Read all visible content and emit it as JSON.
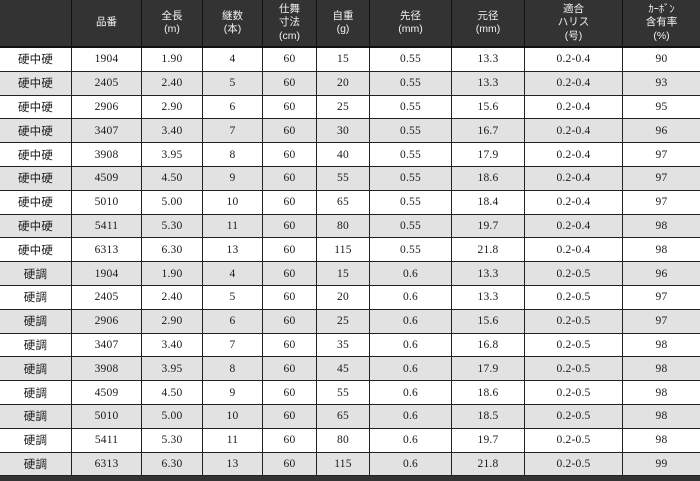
{
  "chart_data": {
    "type": "table",
    "title": "",
    "column_ids": [
      "stiffness",
      "model-number",
      "full-length",
      "sections",
      "closed-length",
      "weight",
      "tip-diameter",
      "butt-diameter",
      "line-rating",
      "carbon-content"
    ],
    "columns": [
      "",
      "品番",
      "全長\n(m)",
      "継数\n(本)",
      "仕舞\n寸法\n(cm)",
      "自重\n(g)",
      "先径\n(mm)",
      "元径\n(mm)",
      "適合\nハリス\n(号)",
      "ｶｰﾎﾞﾝ\n含有率\n(%)"
    ],
    "rows": [
      [
        "硬中硬",
        "1904",
        "1.90",
        "4",
        "60",
        "15",
        "0.55",
        "13.3",
        "0.2-0.4",
        "90"
      ],
      [
        "硬中硬",
        "2405",
        "2.40",
        "5",
        "60",
        "20",
        "0.55",
        "13.3",
        "0.2-0.4",
        "93"
      ],
      [
        "硬中硬",
        "2906",
        "2.90",
        "6",
        "60",
        "25",
        "0.55",
        "15.6",
        "0.2-0.4",
        "95"
      ],
      [
        "硬中硬",
        "3407",
        "3.40",
        "7",
        "60",
        "30",
        "0.55",
        "16.7",
        "0.2-0.4",
        "96"
      ],
      [
        "硬中硬",
        "3908",
        "3.95",
        "8",
        "60",
        "40",
        "0.55",
        "17.9",
        "0.2-0.4",
        "97"
      ],
      [
        "硬中硬",
        "4509",
        "4.50",
        "9",
        "60",
        "55",
        "0.55",
        "18.6",
        "0.2-0.4",
        "97"
      ],
      [
        "硬中硬",
        "5010",
        "5.00",
        "10",
        "60",
        "65",
        "0.55",
        "18.4",
        "0.2-0.4",
        "97"
      ],
      [
        "硬中硬",
        "5411",
        "5.30",
        "11",
        "60",
        "80",
        "0.55",
        "19.7",
        "0.2-0.4",
        "98"
      ],
      [
        "硬中硬",
        "6313",
        "6.30",
        "13",
        "60",
        "115",
        "0.55",
        "21.8",
        "0.2-0.4",
        "98"
      ],
      [
        "硬調",
        "1904",
        "1.90",
        "4",
        "60",
        "15",
        "0.6",
        "13.3",
        "0.2-0.5",
        "96"
      ],
      [
        "硬調",
        "2405",
        "2.40",
        "5",
        "60",
        "20",
        "0.6",
        "13.3",
        "0.2-0.5",
        "97"
      ],
      [
        "硬調",
        "2906",
        "2.90",
        "6",
        "60",
        "25",
        "0.6",
        "15.6",
        "0.2-0.5",
        "97"
      ],
      [
        "硬調",
        "3407",
        "3.40",
        "7",
        "60",
        "35",
        "0.6",
        "16.8",
        "0.2-0.5",
        "98"
      ],
      [
        "硬調",
        "3908",
        "3.95",
        "8",
        "60",
        "45",
        "0.6",
        "17.9",
        "0.2-0.5",
        "98"
      ],
      [
        "硬調",
        "4509",
        "4.50",
        "9",
        "60",
        "55",
        "0.6",
        "18.6",
        "0.2-0.5",
        "98"
      ],
      [
        "硬調",
        "5010",
        "5.00",
        "10",
        "60",
        "65",
        "0.6",
        "18.5",
        "0.2-0.5",
        "98"
      ],
      [
        "硬調",
        "5411",
        "5.30",
        "11",
        "60",
        "80",
        "0.6",
        "19.7",
        "0.2-0.5",
        "98"
      ],
      [
        "硬調",
        "6313",
        "6.30",
        "13",
        "60",
        "115",
        "0.6",
        "21.8",
        "0.2-0.5",
        "99"
      ]
    ]
  },
  "colors": {
    "header_bg": "#333333",
    "header_text": "#f2f2f2",
    "row_bg": "#ffffff",
    "row_alt_bg": "#e2e2e2",
    "border": "#222222",
    "text": "#1a1a1a"
  }
}
